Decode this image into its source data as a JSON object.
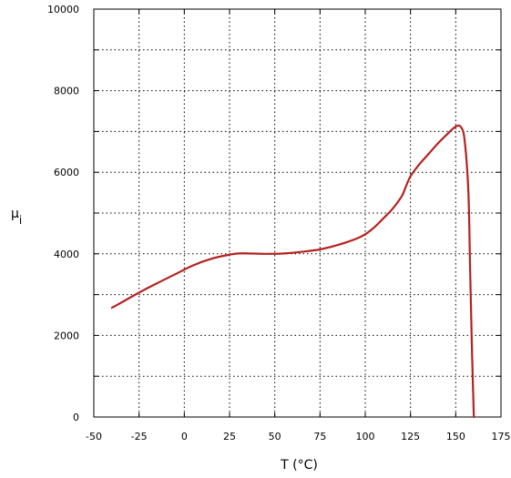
{
  "chart_data": {
    "type": "line",
    "title": "",
    "xlabel": "T (°C)",
    "ylabel": "μ",
    "ylabel_subscript": "i",
    "xlim": [
      -50,
      175
    ],
    "ylim": [
      0,
      10000
    ],
    "xticks": [
      -50,
      -25,
      0,
      25,
      50,
      75,
      100,
      125,
      150,
      175
    ],
    "yticks": [
      0,
      2000,
      4000,
      6000,
      8000,
      10000
    ],
    "yticks_labeled": [
      0,
      2000,
      4000,
      6000,
      8000,
      10000
    ],
    "grid": true,
    "series": [
      {
        "color": "#b5211f",
        "x": [
          -40,
          -35,
          -25,
          -15,
          -5,
          5,
          15,
          25,
          30,
          35,
          45,
          55,
          65,
          75,
          85,
          95,
          100,
          105,
          110,
          115,
          120,
          122,
          125,
          130,
          135,
          140,
          145,
          150,
          153,
          155,
          157,
          158,
          159,
          160
        ],
        "y": [
          2680,
          2800,
          3050,
          3280,
          3500,
          3720,
          3880,
          3980,
          4010,
          4010,
          4000,
          4010,
          4050,
          4110,
          4220,
          4370,
          4480,
          4650,
          4870,
          5100,
          5400,
          5600,
          5900,
          6200,
          6450,
          6700,
          6920,
          7120,
          7100,
          6750,
          5500,
          3500,
          1600,
          0
        ]
      }
    ]
  }
}
